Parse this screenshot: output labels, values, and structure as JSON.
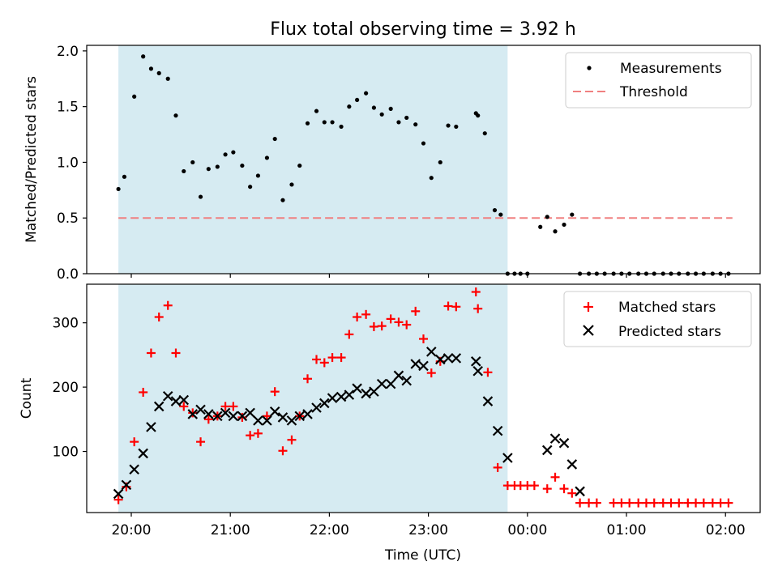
{
  "title": "Flux total observing time = 3.92 h",
  "colors": {
    "shade": "#add8e6",
    "measurement": "#000000",
    "threshold": "#f08080",
    "matched": "#ff0000",
    "predicted": "#000000"
  },
  "chart_data": [
    {
      "type": "scatter",
      "ylabel": "Matched/Predicted stars",
      "ylim": [
        0,
        2.05
      ],
      "yticks": [
        "0.0",
        "0.5",
        "1.0",
        "1.5",
        "2.0"
      ],
      "xlim_hours": [
        19.55,
        26.35
      ],
      "shaded_span_hours": [
        19.87,
        23.8
      ],
      "legend": {
        "placement": "top-right",
        "entries": [
          "Measurements",
          "Threshold"
        ]
      },
      "threshold": {
        "name": "Threshold",
        "value": 0.5,
        "x_range_hours": [
          19.87,
          26.07
        ]
      },
      "series": [
        {
          "name": "Measurements",
          "x_hours": [
            19.87,
            19.93,
            20.03,
            20.12,
            20.2,
            20.28,
            20.37,
            20.45,
            20.53,
            20.62,
            20.7,
            20.78,
            20.87,
            20.95,
            21.03,
            21.12,
            21.2,
            21.28,
            21.37,
            21.45,
            21.53,
            21.62,
            21.7,
            21.78,
            21.87,
            21.95,
            22.03,
            22.12,
            22.2,
            22.28,
            22.37,
            22.45,
            22.53,
            22.62,
            22.7,
            22.78,
            22.87,
            22.95,
            23.03,
            23.12,
            23.2,
            23.28,
            23.48,
            23.5,
            23.57,
            23.67,
            23.73,
            23.8,
            23.87,
            23.93,
            24.0,
            24.13,
            24.2,
            24.28,
            24.37,
            24.45,
            24.53,
            24.62,
            24.7,
            24.78,
            24.87,
            24.95,
            25.03,
            25.12,
            25.2,
            25.28,
            25.37,
            25.45,
            25.53,
            25.62,
            25.7,
            25.78,
            25.87,
            25.95,
            26.03
          ],
          "y": [
            0.76,
            0.87,
            1.59,
            1.95,
            1.84,
            1.8,
            1.75,
            1.42,
            0.92,
            1.0,
            0.69,
            0.94,
            0.96,
            1.07,
            1.09,
            0.97,
            0.78,
            0.88,
            1.04,
            1.21,
            0.66,
            0.8,
            0.97,
            1.35,
            1.46,
            1.36,
            1.36,
            1.32,
            1.5,
            1.56,
            1.62,
            1.49,
            1.43,
            1.48,
            1.36,
            1.4,
            1.34,
            1.17,
            0.86,
            1.0,
            1.33,
            1.32,
            1.44,
            1.42,
            1.26,
            0.57,
            0.53,
            0.0,
            0.0,
            0.0,
            0.0,
            0.42,
            0.51,
            0.38,
            0.44,
            0.53,
            0.0,
            0.0,
            0.0,
            0.0,
            0.0,
            0.0,
            0.0,
            0.0,
            0.0,
            0.0,
            0.0,
            0.0,
            0.0,
            0.0,
            0.0,
            0.0,
            0.0,
            0.0,
            0.0
          ]
        }
      ]
    },
    {
      "type": "scatter",
      "xlabel": "Time (UTC)",
      "ylabel": "Count",
      "ylim": [
        5,
        360
      ],
      "yticks": [
        "100",
        "200",
        "300"
      ],
      "xlim_hours": [
        19.55,
        26.35
      ],
      "xticks": [
        "20:00",
        "21:00",
        "22:00",
        "23:00",
        "00:00",
        "01:00",
        "02:00"
      ],
      "shaded_span_hours": [
        19.87,
        23.8
      ],
      "legend": {
        "placement": "top-right",
        "entries": [
          "Matched stars",
          "Predicted stars"
        ]
      },
      "series": [
        {
          "name": "Matched stars",
          "x_hours": [
            19.87,
            19.95,
            20.03,
            20.12,
            20.2,
            20.28,
            20.37,
            20.45,
            20.53,
            20.62,
            20.7,
            20.78,
            20.87,
            20.95,
            21.03,
            21.12,
            21.2,
            21.28,
            21.37,
            21.45,
            21.53,
            21.62,
            21.7,
            21.78,
            21.87,
            21.95,
            22.03,
            22.12,
            22.2,
            22.28,
            22.37,
            22.45,
            22.53,
            22.62,
            22.7,
            22.78,
            22.87,
            22.95,
            23.03,
            23.12,
            23.2,
            23.28,
            23.48,
            23.5,
            23.6,
            23.7,
            23.8,
            23.87,
            23.93,
            24.0,
            24.07,
            24.2,
            24.28,
            24.37,
            24.45,
            24.53,
            24.62,
            24.7,
            24.87,
            24.95,
            25.03,
            25.12,
            25.2,
            25.28,
            25.37,
            25.45,
            25.53,
            25.62,
            25.7,
            25.78,
            25.87,
            25.95,
            26.03
          ],
          "y": [
            25,
            45,
            115,
            192,
            253,
            309,
            327,
            253,
            170,
            160,
            115,
            150,
            155,
            170,
            170,
            153,
            125,
            128,
            155,
            193,
            101,
            118,
            155,
            213,
            243,
            238,
            246,
            246,
            282,
            309,
            313,
            294,
            295,
            306,
            301,
            297,
            318,
            275,
            222,
            240,
            326,
            325,
            348,
            322,
            223,
            75,
            47,
            47,
            47,
            47,
            47,
            42,
            60,
            42,
            35,
            20,
            20,
            20,
            20,
            20,
            20,
            20,
            20,
            20,
            20,
            20,
            20,
            20,
            20,
            20,
            20,
            20,
            20
          ]
        },
        {
          "name": "Predicted stars",
          "x_hours": [
            19.87,
            19.95,
            20.03,
            20.12,
            20.2,
            20.28,
            20.37,
            20.45,
            20.53,
            20.62,
            20.7,
            20.78,
            20.87,
            20.95,
            21.03,
            21.12,
            21.2,
            21.28,
            21.37,
            21.45,
            21.53,
            21.62,
            21.7,
            21.78,
            21.87,
            21.95,
            22.03,
            22.12,
            22.2,
            22.28,
            22.37,
            22.45,
            22.53,
            22.62,
            22.7,
            22.78,
            22.87,
            22.95,
            23.03,
            23.12,
            23.2,
            23.28,
            23.48,
            23.5,
            23.6,
            23.7,
            23.8,
            24.2,
            24.28,
            24.37,
            24.45,
            24.53
          ],
          "y": [
            34,
            48,
            72,
            97,
            138,
            170,
            186,
            178,
            180,
            158,
            165,
            158,
            155,
            160,
            155,
            155,
            160,
            148,
            148,
            162,
            153,
            148,
            155,
            158,
            168,
            175,
            183,
            185,
            188,
            198,
            190,
            193,
            205,
            205,
            218,
            210,
            236,
            233,
            255,
            243,
            245,
            245,
            240,
            225,
            178,
            132,
            90,
            102,
            120,
            113,
            80,
            38
          ]
        }
      ]
    }
  ]
}
